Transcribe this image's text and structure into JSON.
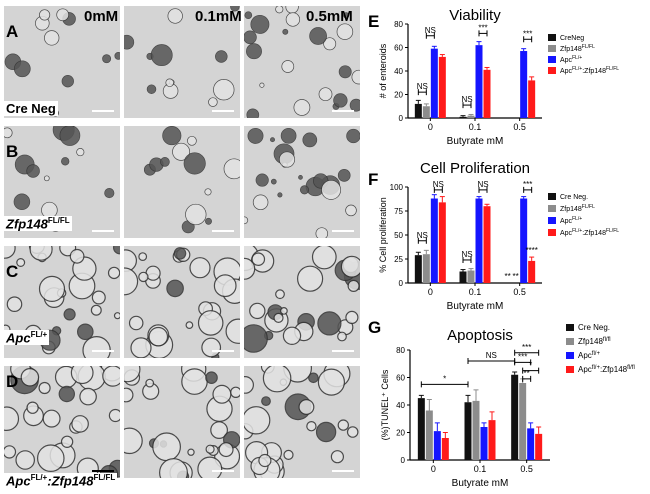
{
  "panels": {
    "A": "A",
    "B": "B",
    "C": "C",
    "D": "D",
    "E": "E",
    "F": "F",
    "G": "G"
  },
  "images": {
    "concentrations": [
      "0mM",
      "0.1mM",
      "0.5mM"
    ],
    "row_labels": {
      "r1": "Cre Neg",
      "r2": "Zfp148",
      "r2_sup": "FL/FL",
      "r3": "Apc",
      "r3_sup": "FL/+",
      "r4a": "Apc",
      "r4a_sup": "FL/+",
      "r4b": ":Zfp148",
      "r4b_sup": "FL/FL"
    }
  },
  "colors": {
    "black": "#111111",
    "gray": "#8c8c8c",
    "blue": "#1515ff",
    "red": "#ff1a1a"
  },
  "chart_data": [
    {
      "panel": "E",
      "type": "bar",
      "title": "Viability",
      "xlabel": "Butyrate mM",
      "ylabel": "# of enteroids",
      "categories": [
        "0",
        "0.1",
        "0.5"
      ],
      "ylim": [
        0,
        80
      ],
      "yticks": [
        "0",
        "20",
        "40",
        "60",
        "80"
      ],
      "legend": [
        "CreNeg",
        "Zfp148",
        "Apc",
        "Apc"
      ],
      "legend_sup": [
        "",
        "FL/FL",
        "FL/+",
        "FL/+"
      ],
      "legend_suffix": [
        "",
        "",
        "",
        ":Zfp148"
      ],
      "legend_suffix_sup": [
        "",
        "",
        "",
        "FL/FL"
      ],
      "series": [
        {
          "values": [
            12,
            1,
            0
          ],
          "errors": [
            3,
            1,
            0
          ]
        },
        {
          "values": [
            10,
            2,
            0
          ],
          "errors": [
            2,
            1,
            0
          ]
        },
        {
          "values": [
            59,
            62,
            57
          ],
          "errors": [
            2,
            3,
            2
          ]
        },
        {
          "values": [
            52,
            41,
            32
          ],
          "errors": [
            2,
            2,
            3
          ]
        }
      ],
      "annotations": [
        {
          "text": "NS",
          "cat": 0,
          "a": 0,
          "b": 1,
          "y": 22
        },
        {
          "text": "NS",
          "cat": 0,
          "a": 1,
          "b": 2,
          "y": 70
        },
        {
          "text": "NS",
          "cat": 1,
          "a": 0,
          "b": 1,
          "y": 11
        },
        {
          "text": "***",
          "cat": 1,
          "a": 2,
          "b": 3,
          "y": 72
        },
        {
          "text": "***",
          "cat": 2,
          "a": 2,
          "b": 3,
          "y": 67
        }
      ]
    },
    {
      "panel": "F",
      "type": "bar",
      "title": "Cell Proliferation",
      "xlabel": "Butyrate mM",
      "ylabel": "% Cell proliferation",
      "categories": [
        "0",
        "0.1",
        "0.5"
      ],
      "ylim": [
        0,
        100
      ],
      "yticks": [
        "0",
        "25",
        "50",
        "75",
        "100"
      ],
      "legend": [
        "Cre Neg.",
        "Zfp148",
        "Apc",
        "Apc"
      ],
      "legend_sup": [
        "",
        "FL/FL",
        "FL/+",
        "FL/+"
      ],
      "legend_suffix": [
        "",
        "",
        "",
        ":Zfp148"
      ],
      "legend_suffix_sup": [
        "",
        "",
        "",
        "FL/FL"
      ],
      "series": [
        {
          "values": [
            29,
            12,
            0
          ],
          "errors": [
            3,
            2,
            0
          ]
        },
        {
          "values": [
            30,
            13,
            0
          ],
          "errors": [
            4,
            2,
            0
          ]
        },
        {
          "values": [
            88,
            88,
            88
          ],
          "errors": [
            4,
            2,
            2
          ]
        },
        {
          "values": [
            84,
            80,
            23
          ],
          "errors": [
            6,
            2,
            4
          ]
        }
      ],
      "annotations": [
        {
          "text": "NS",
          "cat": 0,
          "a": 0,
          "b": 1,
          "y": 44
        },
        {
          "text": "NS",
          "cat": 0,
          "a": 2,
          "b": 3,
          "y": 97
        },
        {
          "text": "NS",
          "cat": 1,
          "a": 0,
          "b": 1,
          "y": 24
        },
        {
          "text": "NS",
          "cat": 1,
          "a": 2,
          "b": 3,
          "y": 97
        },
        {
          "text": "***",
          "cat": 2,
          "a": 2,
          "b": 3,
          "y": 97
        }
      ],
      "stars": [
        {
          "text": "**",
          "cat": 2,
          "s": 0,
          "y": 4
        },
        {
          "text": "**",
          "cat": 2,
          "s": 1,
          "y": 4
        },
        {
          "text": "****",
          "cat": 2,
          "s": 3,
          "y": 31
        }
      ]
    },
    {
      "panel": "G",
      "type": "bar",
      "title": "Apoptosis",
      "xlabel": "Butyrate mM",
      "ylabel": "(%)TUNEL⁺ Cells",
      "categories": [
        "0",
        "0.1",
        "0.5"
      ],
      "ylim": [
        0,
        80
      ],
      "yticks": [
        "0",
        "20",
        "40",
        "60",
        "80"
      ],
      "legend": [
        "Cre Neg.",
        "Zfp148",
        "Apc",
        "Apc"
      ],
      "legend_sup": [
        "",
        "fl/fl",
        "fl/+",
        "fl/+"
      ],
      "legend_suffix": [
        "",
        "",
        "",
        ":Zfp148"
      ],
      "legend_suffix_sup": [
        "",
        "",
        "",
        "fl/fl"
      ],
      "series": [
        {
          "values": [
            45,
            42,
            62
          ],
          "errors": [
            2,
            5,
            2
          ]
        },
        {
          "values": [
            36,
            43,
            56
          ],
          "errors": [
            8,
            8,
            3
          ]
        },
        {
          "values": [
            21,
            24,
            23
          ],
          "errors": [
            6,
            3,
            4
          ]
        },
        {
          "values": [
            16,
            29,
            19
          ],
          "errors": [
            4,
            6,
            5
          ]
        }
      ],
      "annotations": [
        {
          "text": "*",
          "cat0": 0,
          "a": 0,
          "cat1": 1,
          "b": 0,
          "y": 55
        },
        {
          "text": "NS",
          "cat0": 1,
          "a": 0,
          "cat1": 2,
          "b": 0,
          "y": 72
        },
        {
          "text": "***",
          "cat0": 2,
          "a": 0,
          "cat1": 2,
          "b": 3,
          "y": 78
        },
        {
          "text": "***",
          "cat0": 2,
          "a": 0,
          "cat1": 2,
          "b": 2,
          "y": 71
        },
        {
          "text": "*",
          "cat0": 2,
          "a": 1,
          "cat1": 2,
          "b": 3,
          "y": 65
        },
        {
          "text": "**",
          "cat0": 2,
          "a": 1,
          "cat1": 2,
          "b": 2,
          "y": 59
        }
      ]
    }
  ]
}
